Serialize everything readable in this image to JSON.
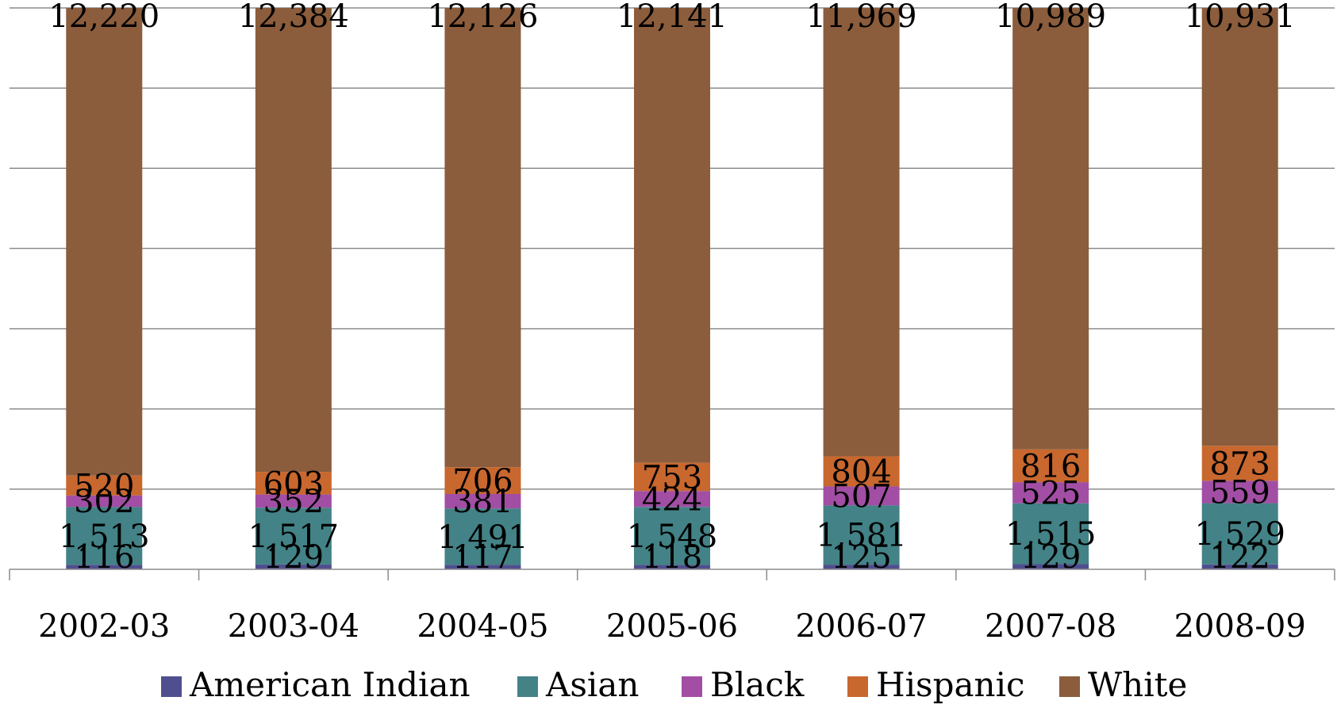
{
  "chart_data": {
    "type": "bar",
    "stacked": true,
    "title": "",
    "xlabel": "",
    "ylabel": "",
    "categories": [
      "2002-03",
      "2003-04",
      "2004-05",
      "2005-06",
      "2006-07",
      "2007-08",
      "2008-09"
    ],
    "series": [
      {
        "name": "American Indian",
        "color": "#4F4F8F",
        "values": [
          116,
          129,
          117,
          118,
          125,
          129,
          122
        ],
        "labels": [
          "116",
          "129",
          "117",
          "118",
          "125",
          "129",
          "122"
        ]
      },
      {
        "name": "Asian",
        "color": "#438286",
        "values": [
          1513,
          1517,
          1491,
          1548,
          1581,
          1515,
          1529
        ],
        "labels": [
          "1,513",
          "1,517",
          "1,491",
          "1,548",
          "1,581",
          "1,515",
          "1,529"
        ]
      },
      {
        "name": "Black",
        "color": "#A14EA4",
        "values": [
          302,
          352,
          381,
          424,
          507,
          525,
          559
        ],
        "labels": [
          "302",
          "352",
          "381",
          "424",
          "507",
          "525",
          "559"
        ]
      },
      {
        "name": "Hispanic",
        "color": "#C8672E",
        "values": [
          520,
          603,
          706,
          753,
          804,
          816,
          873
        ],
        "labels": [
          "520",
          "603",
          "706",
          "753",
          "804",
          "816",
          "873"
        ]
      },
      {
        "name": "White",
        "color": "#8B5D3C",
        "values": [
          12220,
          12384,
          12126,
          12141,
          11969,
          10989,
          10931
        ],
        "labels": [
          "12,220",
          "12,384",
          "12,126",
          "12,141",
          "11,969",
          "10,989",
          "10,931"
        ]
      }
    ],
    "grid": true,
    "gridlines": 7,
    "legend": "bottom"
  }
}
